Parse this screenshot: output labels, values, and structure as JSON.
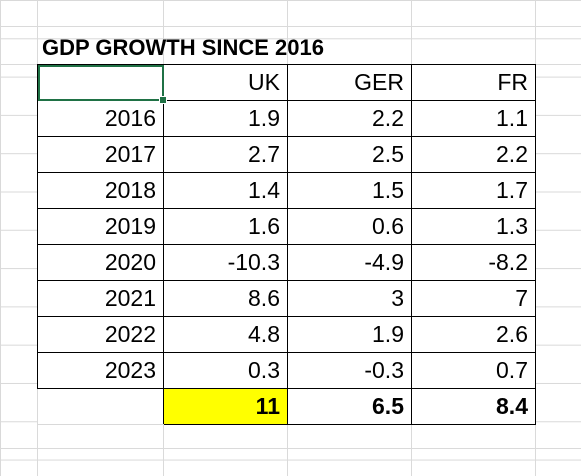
{
  "title": "GDP GROWTH SINCE 2016",
  "columns": [
    "",
    "UK",
    "GER",
    "FR"
  ],
  "rows": [
    {
      "year": "2016",
      "uk": "1.9",
      "ger": "2.2",
      "fr": "1.1"
    },
    {
      "year": "2017",
      "uk": "2.7",
      "ger": "2.5",
      "fr": "2.2"
    },
    {
      "year": "2018",
      "uk": "1.4",
      "ger": "1.5",
      "fr": "1.7"
    },
    {
      "year": "2019",
      "uk": "1.6",
      "ger": "0.6",
      "fr": "1.3"
    },
    {
      "year": "2020",
      "uk": "-10.3",
      "ger": "-4.9",
      "fr": "-8.2"
    },
    {
      "year": "2021",
      "uk": "8.6",
      "ger": "3",
      "fr": "7"
    },
    {
      "year": "2022",
      "uk": "4.8",
      "ger": "1.9",
      "fr": "2.6"
    },
    {
      "year": "2023",
      "uk": "0.3",
      "ger": "-0.3",
      "fr": "0.7"
    }
  ],
  "totals": {
    "uk": "11",
    "ger": "6.5",
    "fr": "8.4"
  },
  "colors": {
    "highlight": "#ffff00",
    "selection": "#1f7145",
    "gridline": "#d9d9d9"
  }
}
